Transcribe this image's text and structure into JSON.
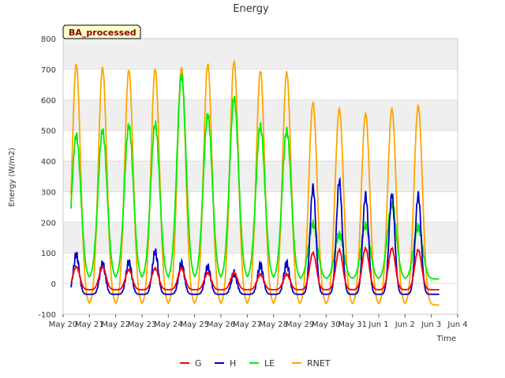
{
  "chart_data": {
    "type": "line",
    "title": "Energy",
    "xlabel": "Time",
    "ylabel": "Energy (W/m2)",
    "annotation": "BA_processed",
    "ylim": [
      -100,
      800
    ],
    "yticks": [
      -100,
      0,
      100,
      200,
      300,
      400,
      500,
      600,
      700,
      800
    ],
    "xlim": [
      0,
      15
    ],
    "xticks": [
      {
        "value": 0,
        "label": "May 20"
      },
      {
        "value": 1,
        "label": "May 21"
      },
      {
        "value": 2,
        "label": "May 22"
      },
      {
        "value": 3,
        "label": "May 23"
      },
      {
        "value": 4,
        "label": "May 24"
      },
      {
        "value": 5,
        "label": "May 25"
      },
      {
        "value": 6,
        "label": "May 26"
      },
      {
        "value": 7,
        "label": "May 27"
      },
      {
        "value": 8,
        "label": "May 28"
      },
      {
        "value": 9,
        "label": "May 29"
      },
      {
        "value": 10,
        "label": "May 30"
      },
      {
        "value": 11,
        "label": "May 31"
      },
      {
        "value": 12,
        "label": "Jun 1"
      },
      {
        "value": 13,
        "label": "Jun 2"
      },
      {
        "value": 14,
        "label": "Jun 3"
      },
      {
        "value": 15,
        "label": "Jun 4"
      }
    ],
    "daily_peaks": {
      "day_start": 0.5,
      "RNET": [
        715,
        705,
        697,
        700,
        705,
        715,
        725,
        695,
        690,
        590,
        570,
        555,
        570,
        580
      ],
      "LE": [
        485,
        500,
        515,
        520,
        680,
        550,
        605,
        515,
        500,
        195,
        160,
        190,
        260,
        185
      ],
      "H": [
        95,
        65,
        70,
        105,
        65,
        55,
        35,
        60,
        65,
        315,
        335,
        290,
        290,
        290
      ],
      "G": [
        55,
        55,
        45,
        50,
        50,
        35,
        35,
        30,
        30,
        100,
        110,
        115,
        115,
        110
      ]
    },
    "series": [
      {
        "name": "G",
        "color": "#ff0000"
      },
      {
        "name": "H",
        "color": "#0000cc"
      },
      {
        "name": "LE",
        "color": "#00ee00"
      },
      {
        "name": "RNET",
        "color": "#ffa500"
      }
    ],
    "grid": true,
    "legend_position": "bottom"
  }
}
